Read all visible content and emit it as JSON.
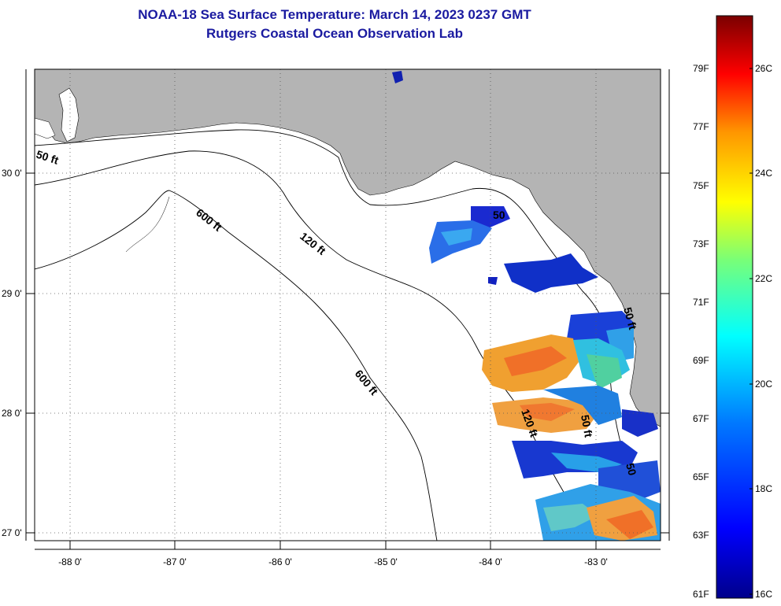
{
  "header": {
    "title": "NOAA-18 Sea Surface Temperature:  March 14, 2023 0237 GMT",
    "subtitle": "Rutgers Coastal Ocean Observation Lab"
  },
  "map": {
    "lon_labels": [
      "-88 0'",
      "-87 0'",
      "-86 0'",
      "-85 0'",
      "-84 0'",
      "-83 0'"
    ],
    "lat_labels": [
      "30 0'",
      "29 0'",
      "28 0'",
      "27 0'"
    ],
    "contour_labels": [
      "50 ft",
      "600 ft",
      "120 ft",
      "600 ft",
      "50 ft",
      "120 ft",
      "50 ft",
      "50",
      "50"
    ],
    "colors": {
      "land": "#b4b4b4",
      "ocean": "#ffffff",
      "contour": "#000000"
    }
  },
  "colorbar": {
    "fahrenheit_labels": [
      "79F",
      "77F",
      "75F",
      "73F",
      "71F",
      "69F",
      "67F",
      "65F",
      "63F",
      "61F"
    ],
    "celsius_labels": [
      "26C",
      "24C",
      "22C",
      "20C",
      "18C",
      "16C"
    ],
    "min_c": 16,
    "max_c": 27,
    "stops": [
      "#00008b",
      "#0000ff",
      "#0078ff",
      "#00ffff",
      "#78ff78",
      "#ffff00",
      "#ff9600",
      "#ff0000",
      "#7a0000"
    ]
  }
}
